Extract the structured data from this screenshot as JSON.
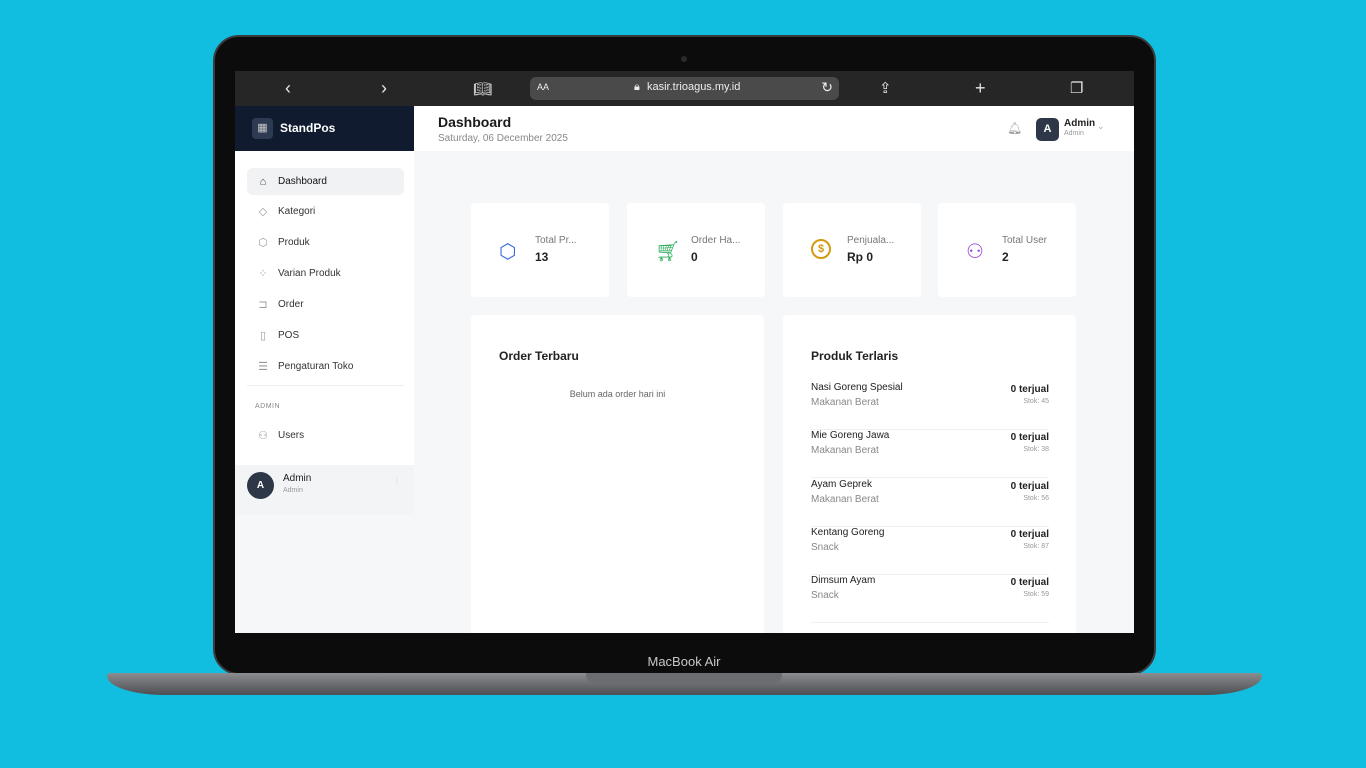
{
  "device_label": "MacBook Air",
  "browser": {
    "url": "kasir.trioagus.my.id",
    "text_size": "AA"
  },
  "app": {
    "name": "StandPos"
  },
  "header": {
    "title": "Dashboard",
    "date": "Saturday, 06 December 2025",
    "user_name": "Admin",
    "user_role": "Admin",
    "avatar": "A"
  },
  "sidebar": {
    "items": [
      {
        "label": "Dashboard",
        "icon": "home-icon"
      },
      {
        "label": "Kategori",
        "icon": "tag-icon"
      },
      {
        "label": "Produk",
        "icon": "box-icon"
      },
      {
        "label": "Varian Produk",
        "icon": "grid-icon"
      },
      {
        "label": "Order",
        "icon": "cart-icon"
      },
      {
        "label": "POS",
        "icon": "calculator-icon"
      },
      {
        "label": "Pengaturan Toko",
        "icon": "sliders-icon"
      }
    ],
    "section": "ADMIN",
    "admin_items": [
      {
        "label": "Users",
        "icon": "users-icon"
      }
    ],
    "user": {
      "name": "Admin",
      "role": "Admin",
      "avatar": "A"
    }
  },
  "stats": [
    {
      "label": "Total Pr...",
      "value": "13",
      "color": "#3b6fd8"
    },
    {
      "label": "Order Ha...",
      "value": "0",
      "color": "#2fae5e"
    },
    {
      "label": "Penjuala...",
      "value": "Rp 0",
      "color": "#d49a10"
    },
    {
      "label": "Total User",
      "value": "2",
      "color": "#9b4fd6"
    }
  ],
  "orders": {
    "title": "Order Terbaru",
    "empty": "Belum ada order hari ini"
  },
  "top_products": {
    "title": "Produk Terlaris",
    "items": [
      {
        "name": "Nasi Goreng Spesial",
        "category": "Makanan Berat",
        "sold": "0 terjual",
        "stock": "Stok: 45"
      },
      {
        "name": "Mie Goreng Jawa",
        "category": "Makanan Berat",
        "sold": "0 terjual",
        "stock": "Stok: 38"
      },
      {
        "name": "Ayam Geprek",
        "category": "Makanan Berat",
        "sold": "0 terjual",
        "stock": "Stok: 56"
      },
      {
        "name": "Kentang Goreng",
        "category": "Snack",
        "sold": "0 terjual",
        "stock": "Stok: 87"
      },
      {
        "name": "Dimsum Ayam",
        "category": "Snack",
        "sold": "0 terjual",
        "stock": "Stok: 59"
      }
    ]
  }
}
